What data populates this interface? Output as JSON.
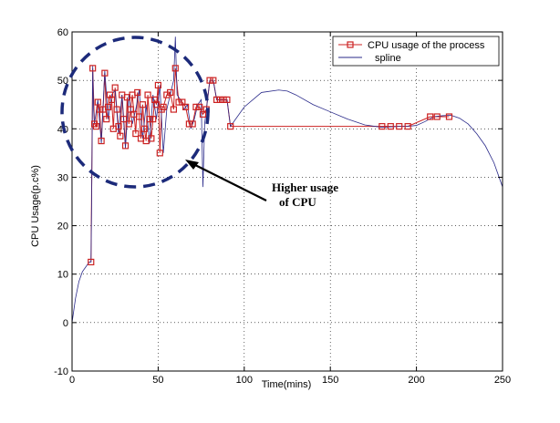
{
  "chart_data": {
    "type": "line",
    "title": "",
    "xlabel": "Time(mins)",
    "ylabel": "CPU Usage(p.c%)",
    "xlim": [
      0,
      250
    ],
    "ylim": [
      -10,
      60
    ],
    "xticks": [
      0,
      50,
      100,
      150,
      200,
      250
    ],
    "yticks": [
      -10,
      0,
      10,
      20,
      30,
      40,
      50,
      60
    ],
    "grid": true,
    "legend_position": "top-right",
    "series": [
      {
        "name": "CPU usage of the process",
        "color": "#cc2222",
        "marker": "square",
        "x": [
          11,
          12,
          13,
          14,
          15,
          16,
          17,
          18,
          19,
          20,
          21,
          22,
          23,
          24,
          25,
          26,
          27,
          28,
          29,
          30,
          31,
          32,
          33,
          34,
          35,
          36,
          37,
          38,
          39,
          40,
          41,
          42,
          43,
          44,
          45,
          46,
          47,
          48,
          49,
          50,
          51,
          52,
          53,
          55,
          57,
          59,
          60,
          62,
          64,
          66,
          68,
          70,
          72,
          74,
          76,
          78,
          80,
          82,
          84,
          86,
          88,
          90,
          92,
          180,
          185,
          190,
          195,
          208,
          212,
          219
        ],
        "y": [
          12.5,
          52.5,
          41,
          40.5,
          45.5,
          44,
          37.5,
          44,
          51.5,
          42,
          44.5,
          47,
          46,
          40,
          48.5,
          44,
          40.5,
          38.5,
          47,
          42,
          36.5,
          46.5,
          41,
          44,
          47,
          43,
          39,
          47.5,
          42.5,
          38,
          45,
          40,
          37.5,
          47,
          42,
          38,
          42,
          46,
          45,
          49,
          35,
          44,
          44.5,
          47,
          47.5,
          44,
          52.5,
          45.5,
          45.5,
          44.5,
          41,
          41,
          44.5,
          44.5,
          43,
          44,
          50,
          50,
          46,
          46,
          46,
          46,
          40.5,
          40.5,
          40.5,
          40.5,
          40.5,
          42.5,
          42.5,
          42.5
        ]
      },
      {
        "name": "spline",
        "color": "#2a2a8a",
        "marker": "none",
        "x": [
          0,
          2,
          4,
          6,
          8,
          10,
          11,
          11.5,
          12,
          12.5,
          13,
          15,
          17,
          19,
          21,
          23,
          25,
          27,
          29,
          31,
          33,
          35,
          37,
          39,
          41,
          43,
          45,
          47,
          49,
          51,
          53,
          55,
          57,
          59,
          60,
          61,
          63,
          65,
          67,
          69,
          71,
          73,
          75,
          76,
          77,
          78,
          80,
          82,
          84,
          86,
          88,
          90,
          92,
          95,
          100,
          110,
          120,
          125,
          130,
          140,
          150,
          160,
          170,
          180,
          190,
          195,
          200,
          205,
          210,
          215,
          220,
          225,
          230,
          235,
          240,
          245,
          250
        ],
        "y": [
          0,
          5,
          8.5,
          10.5,
          11.5,
          12.5,
          12.5,
          30,
          53,
          44,
          41,
          46,
          37,
          52,
          42,
          47,
          48,
          39,
          47,
          36,
          47,
          41,
          44,
          48,
          38,
          45,
          37,
          47,
          42,
          49,
          35,
          44,
          47,
          50,
          59,
          47,
          46,
          44,
          45,
          40,
          42,
          45,
          46,
          28,
          41,
          44,
          50,
          50,
          46,
          46,
          46,
          46,
          40.5,
          42,
          44.5,
          47.5,
          48,
          47.8,
          47,
          45,
          43.5,
          42,
          40.8,
          40.3,
          40.5,
          40.5,
          40.7,
          41.5,
          42.5,
          42.7,
          42.8,
          42.2,
          41,
          39,
          36.5,
          33,
          28
        ]
      }
    ],
    "annotations": [
      {
        "text_lines": [
          "Higher usage",
          "of CPU"
        ]
      }
    ]
  }
}
